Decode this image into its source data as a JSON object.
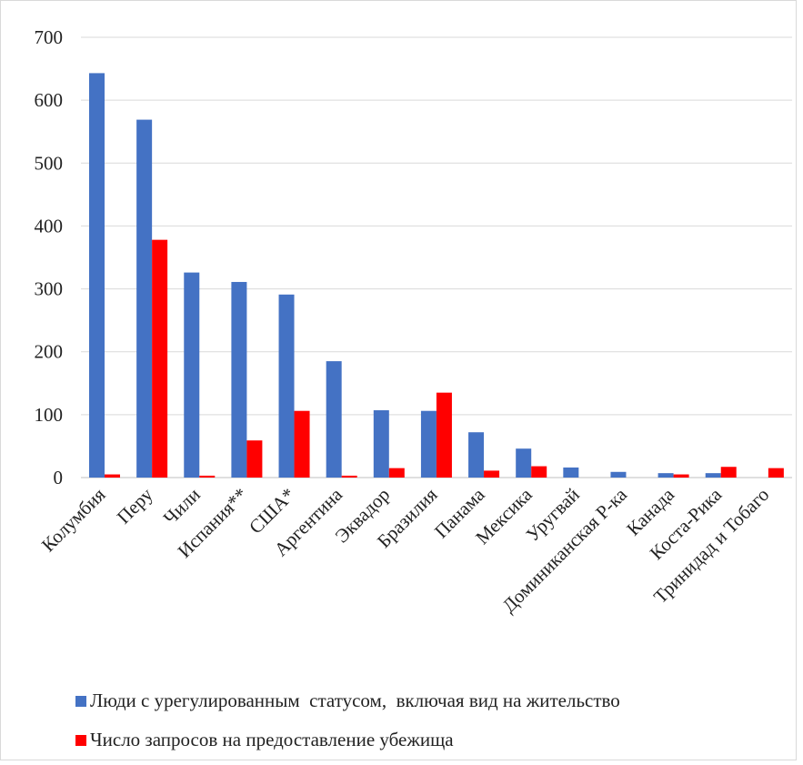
{
  "chart_data": {
    "type": "bar",
    "categories": [
      "Колумбия",
      "Перу",
      "Чили",
      "Испания**",
      "США*",
      "Аргентина",
      "Эквадор",
      "Бразилия",
      "Панама",
      "Мексика",
      "Уругвай",
      "Доминиканская Р-ка",
      "Канада",
      "Коста-Рика",
      "Тринидад и Тобаго"
    ],
    "series": [
      {
        "name": "Люди с урегулированным  статусом,  включая вид на жительство",
        "color": "#4472c4",
        "values": [
          643,
          569,
          326,
          311,
          291,
          185,
          107,
          106,
          72,
          46,
          16,
          9,
          7,
          7,
          0
        ]
      },
      {
        "name": "Число запросов на предоставление убежища",
        "color": "#ff0000",
        "values": [
          5,
          378,
          3,
          59,
          106,
          3,
          15,
          135,
          11,
          18,
          0,
          0,
          5,
          17,
          15
        ]
      }
    ],
    "yticks": [
      "0",
      "100",
      "200",
      "300",
      "400",
      "500",
      "600",
      "700"
    ],
    "ylim": [
      0,
      700
    ],
    "grid": true,
    "legend_position": "bottom",
    "title": "",
    "xlabel": "",
    "ylabel": ""
  }
}
